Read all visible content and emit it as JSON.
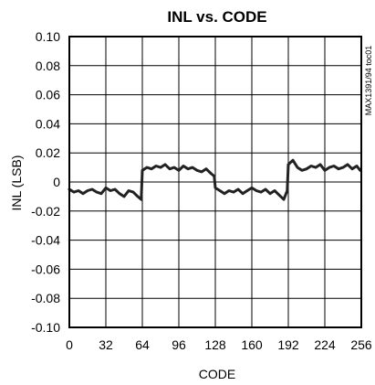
{
  "chart_data": {
    "type": "line",
    "title": "INL vs. CODE",
    "xlabel": "CODE",
    "ylabel": "INL (LSB)",
    "side_label": "MAX1391/94 toc01",
    "xlim": [
      0,
      256
    ],
    "ylim": [
      -0.1,
      0.1
    ],
    "x_ticks": [
      "0",
      "32",
      "64",
      "96",
      "128",
      "160",
      "192",
      "224",
      "256"
    ],
    "y_ticks": [
      "0.10",
      "0.08",
      "0.06",
      "0.04",
      "0.02",
      "0",
      "-0.02",
      "-0.04",
      "-0.06",
      "-0.08",
      "-0.10"
    ],
    "grid": true,
    "series": [
      {
        "x": [
          0,
          4,
          8,
          12,
          16,
          20,
          24,
          28,
          32,
          36,
          40,
          44,
          48,
          52,
          56,
          60,
          63,
          64,
          68,
          72,
          76,
          80,
          84,
          88,
          92,
          96,
          100,
          104,
          108,
          112,
          116,
          120,
          124,
          127,
          128,
          132,
          136,
          140,
          144,
          148,
          152,
          156,
          160,
          164,
          168,
          172,
          176,
          180,
          184,
          188,
          191,
          192,
          196,
          200,
          204,
          208,
          212,
          216,
          220,
          224,
          228,
          232,
          236,
          240,
          244,
          248,
          252,
          255
        ],
        "y": [
          -0.005,
          -0.007,
          -0.006,
          -0.008,
          -0.006,
          -0.005,
          -0.007,
          -0.008,
          -0.004,
          -0.006,
          -0.005,
          -0.008,
          -0.01,
          -0.006,
          -0.007,
          -0.01,
          -0.012,
          0.008,
          0.01,
          0.009,
          0.011,
          0.01,
          0.012,
          0.009,
          0.01,
          0.008,
          0.011,
          0.009,
          0.01,
          0.008,
          0.007,
          0.009,
          0.006,
          0.004,
          -0.004,
          -0.006,
          -0.008,
          -0.006,
          -0.007,
          -0.005,
          -0.008,
          -0.006,
          -0.004,
          -0.006,
          -0.007,
          -0.005,
          -0.008,
          -0.006,
          -0.009,
          -0.012,
          -0.006,
          0.012,
          0.015,
          0.01,
          0.008,
          0.009,
          0.011,
          0.01,
          0.012,
          0.008,
          0.01,
          0.011,
          0.009,
          0.01,
          0.012,
          0.009,
          0.011,
          0.008
        ]
      }
    ]
  }
}
